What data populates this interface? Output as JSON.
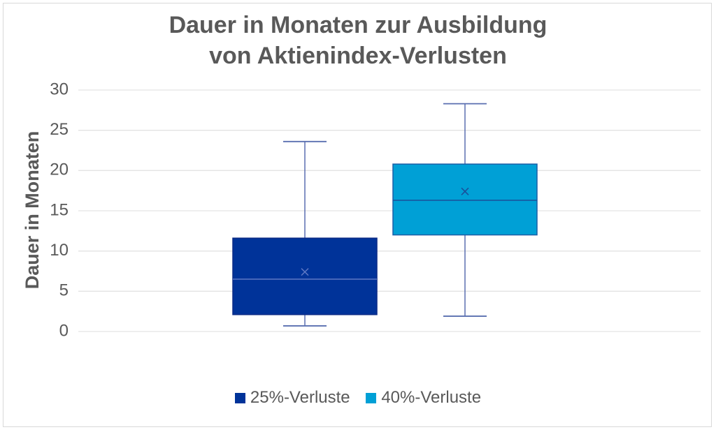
{
  "chart_data": {
    "type": "boxplot",
    "title_lines": [
      "Dauer in Monaten zur Ausbildung",
      "von Aktienindex-Verlusten"
    ],
    "ylabel": "Dauer in Monaten",
    "xlabel": "",
    "ylim": [
      0,
      30
    ],
    "yticks": [
      0,
      5,
      10,
      15,
      20,
      25,
      30
    ],
    "grid": true,
    "legend_position": "bottom",
    "series": [
      {
        "name": "25%-Verluste",
        "color": "#003399",
        "min": 0.7,
        "q1": 2.1,
        "median": 6.5,
        "q3": 11.6,
        "max": 23.6,
        "mean": 7.4
      },
      {
        "name": "40%-Verluste",
        "color": "#00A0D6",
        "min": 1.9,
        "q1": 12.0,
        "median": 16.3,
        "q3": 20.8,
        "max": 28.3,
        "mean": 17.4
      }
    ]
  }
}
